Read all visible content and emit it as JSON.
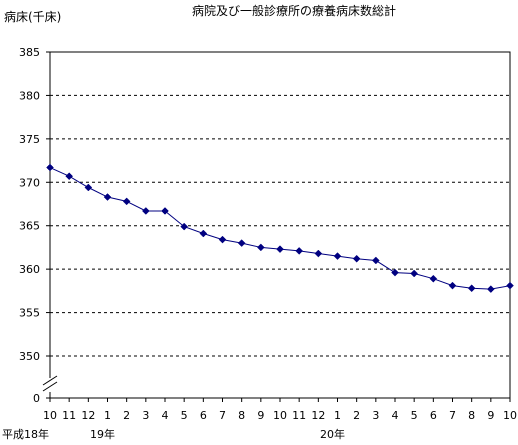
{
  "chart_data": {
    "type": "line",
    "title": "病院及び一般診療所の療養病床数総計",
    "ylabel": "病床(千床)",
    "ylim": [
      345,
      385
    ],
    "ytick_values": [
      385,
      380,
      375,
      370,
      365,
      360,
      355,
      350
    ],
    "ytick_labels": [
      "385",
      "380",
      "375",
      "370",
      "365",
      "360",
      "355",
      "350"
    ],
    "y_zero_label": "0",
    "axis_break": true,
    "grid": true,
    "categories": [
      "10",
      "11",
      "12",
      "1",
      "2",
      "3",
      "4",
      "5",
      "6",
      "7",
      "8",
      "9",
      "10",
      "11",
      "12",
      "1",
      "2",
      "3",
      "4",
      "5",
      "6",
      "7",
      "8",
      "9",
      "10"
    ],
    "year_labels": [
      {
        "text": "平成18年",
        "at": 0
      },
      {
        "text": "19年",
        "at": 3
      },
      {
        "text": "20年",
        "at": 15
      }
    ],
    "series": [
      {
        "color": "#000080",
        "values": [
          371.7,
          370.7,
          369.4,
          368.3,
          367.8,
          366.7,
          366.7,
          364.9,
          364.1,
          363.4,
          363.0,
          362.5,
          362.3,
          362.1,
          361.8,
          361.5,
          361.2,
          361.0,
          359.6,
          359.5,
          358.9,
          358.1,
          357.8,
          357.7,
          358.1
        ]
      }
    ]
  }
}
